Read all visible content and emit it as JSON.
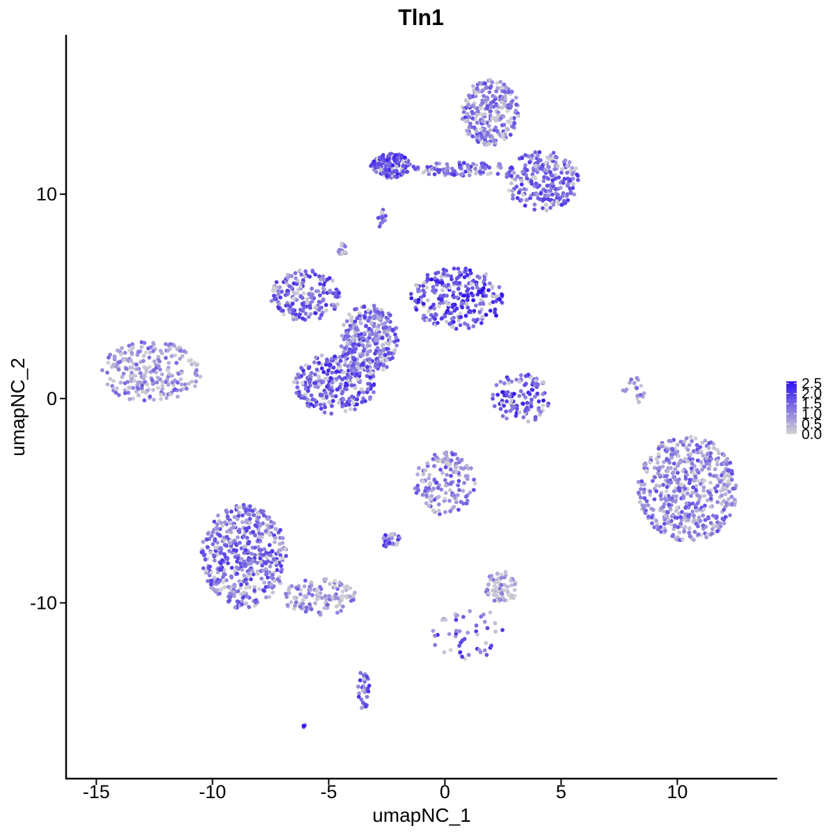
{
  "chart_data": {
    "type": "scatter",
    "title": "Tln1",
    "xlabel": "umapNC_1",
    "ylabel": "umapNC_2",
    "xlim": [
      -16.3,
      14.3
    ],
    "ylim": [
      -18.6,
      17.8
    ],
    "x_ticks": [
      -15,
      -10,
      -5,
      0,
      5,
      10
    ],
    "x_tick_labels": [
      "-15",
      "-10",
      "-5",
      "0",
      "5",
      "10"
    ],
    "y_ticks": [
      -10,
      0,
      10
    ],
    "y_tick_labels": [
      "-10",
      "0",
      "10"
    ],
    "grid": false,
    "legend": {
      "placement": "right",
      "type": "colorbar",
      "min": 0.0,
      "max": 2.6,
      "low_color": "#d3d3d3",
      "high_color": "#2e12ee",
      "breaks": [
        2.5,
        2.0,
        1.5,
        1.0,
        0.5,
        0.0
      ],
      "labels": [
        "2.5",
        "2.0",
        "1.5",
        "1.0",
        "0.5",
        "0.0"
      ]
    },
    "clusters": [
      {
        "id": "top-right-upper",
        "x_range": [
          0.7,
          3.2
        ],
        "y_range": [
          12.4,
          15.6
        ],
        "n": 260,
        "mean_expr": 1.15
      },
      {
        "id": "top-left-band",
        "x_range": [
          -3.2,
          -1.5
        ],
        "y_range": [
          10.8,
          12.0
        ],
        "n": 150,
        "mean_expr": 1.7
      },
      {
        "id": "top-bridge",
        "x_range": [
          -1.5,
          3.0
        ],
        "y_range": [
          10.9,
          11.6
        ],
        "n": 90,
        "mean_expr": 1.4
      },
      {
        "id": "top-right-arm",
        "x_range": [
          2.6,
          5.8
        ],
        "y_range": [
          9.2,
          12.1
        ],
        "n": 230,
        "mean_expr": 1.4
      },
      {
        "id": "center-right-arm",
        "x_range": [
          -1.5,
          2.6
        ],
        "y_range": [
          3.4,
          6.4
        ],
        "n": 260,
        "mean_expr": 1.9
      },
      {
        "id": "center-hub",
        "x_range": [
          -4.5,
          -2.0
        ],
        "y_range": [
          1.2,
          4.6
        ],
        "n": 300,
        "mean_expr": 1.3
      },
      {
        "id": "center-upper-left-arm",
        "x_range": [
          -7.5,
          -4.5
        ],
        "y_range": [
          3.8,
          6.3
        ],
        "n": 180,
        "mean_expr": 1.5
      },
      {
        "id": "center-lower-lobe",
        "x_range": [
          -6.5,
          -3.0
        ],
        "y_range": [
          -0.8,
          2.2
        ],
        "n": 280,
        "mean_expr": 1.6
      },
      {
        "id": "left-island",
        "x_range": [
          -14.8,
          -10.5
        ],
        "y_range": [
          -0.2,
          2.8
        ],
        "n": 240,
        "mean_expr": 0.85
      },
      {
        "id": "crescent",
        "x_range": [
          2.0,
          4.6
        ],
        "y_range": [
          -1.2,
          1.2
        ],
        "n": 110,
        "mean_expr": 1.8
      },
      {
        "id": "right-blob",
        "x_range": [
          8.3,
          12.6
        ],
        "y_range": [
          -7.0,
          -1.8
        ],
        "n": 520,
        "mean_expr": 1.05
      },
      {
        "id": "bottom-left-blob",
        "x_range": [
          -10.5,
          -6.8
        ],
        "y_range": [
          -10.3,
          -5.2
        ],
        "n": 480,
        "mean_expr": 1.3
      },
      {
        "id": "bottom-left-tail",
        "x_range": [
          -7.0,
          -3.8
        ],
        "y_range": [
          -10.6,
          -8.8
        ],
        "n": 120,
        "mean_expr": 0.8
      },
      {
        "id": "lower-center",
        "x_range": [
          -1.3,
          1.3
        ],
        "y_range": [
          -5.7,
          -2.6
        ],
        "n": 150,
        "mean_expr": 1.1
      },
      {
        "id": "lower-small-left",
        "x_range": [
          -2.8,
          -1.9
        ],
        "y_range": [
          -7.3,
          -6.6
        ],
        "n": 30,
        "mean_expr": 1.5
      },
      {
        "id": "lower-gray-patch",
        "x_range": [
          1.7,
          3.2
        ],
        "y_range": [
          -10.0,
          -8.4
        ],
        "n": 70,
        "mean_expr": 0.6
      },
      {
        "id": "bottom-strand",
        "x_range": [
          -0.6,
          2.6
        ],
        "y_range": [
          -12.8,
          -10.2
        ],
        "n": 50,
        "mean_expr": 1.5
      },
      {
        "id": "bottom-tail",
        "x_range": [
          -3.8,
          -3.2
        ],
        "y_range": [
          -15.3,
          -13.3
        ],
        "n": 30,
        "mean_expr": 1.4
      },
      {
        "id": "small-mid-right",
        "x_range": [
          7.6,
          8.6
        ],
        "y_range": [
          -0.4,
          1.2
        ],
        "n": 18,
        "mean_expr": 0.8
      },
      {
        "id": "small-top-isolated",
        "x_range": [
          -2.9,
          -2.5
        ],
        "y_range": [
          8.3,
          9.3
        ],
        "n": 14,
        "mean_expr": 1.6
      },
      {
        "id": "small-center-top",
        "x_range": [
          -4.6,
          -4.2
        ],
        "y_range": [
          7.0,
          7.6
        ],
        "n": 14,
        "mean_expr": 1.7
      },
      {
        "id": "small-lone-bottom",
        "x_range": [
          -6.1,
          -5.9
        ],
        "y_range": [
          -16.2,
          -15.9
        ],
        "n": 4,
        "mean_expr": 1.8
      }
    ]
  }
}
